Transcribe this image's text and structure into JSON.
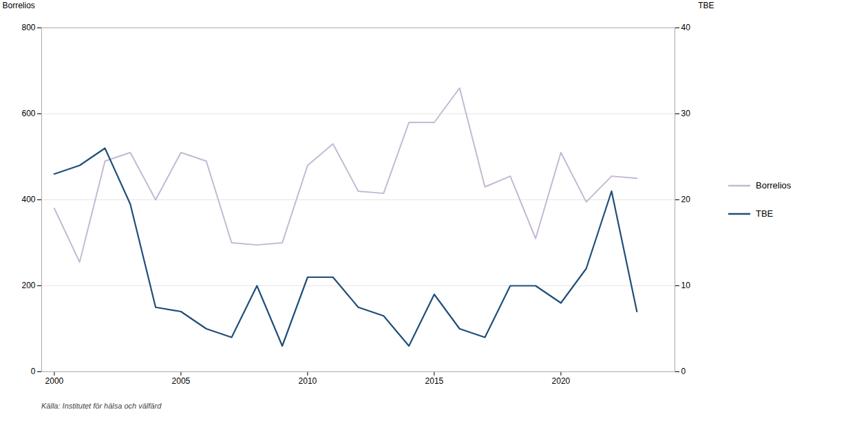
{
  "chart_data": {
    "type": "line",
    "ylabel": "Borrelios",
    "y2label": "TBE",
    "source": "Källa: Institutet för hälsa och välfärd",
    "x": [
      2000,
      2001,
      2002,
      2003,
      2004,
      2005,
      2006,
      2007,
      2008,
      2009,
      2010,
      2011,
      2012,
      2013,
      2014,
      2015,
      2016,
      2017,
      2018,
      2019,
      2020,
      2021,
      2022,
      2023
    ],
    "series": [
      {
        "name": "Borrelios",
        "color": "#c5b8d4",
        "values": [
          380,
          255,
          490,
          510,
          400,
          510,
          490,
          300,
          295,
          300,
          480,
          530,
          420,
          415,
          580,
          580,
          660,
          430,
          455,
          310,
          510,
          395,
          455,
          450
        ]
      },
      {
        "name": "TBE",
        "color": "#1f4e79",
        "axis": "y2",
        "values": [
          23,
          24,
          26,
          19.5,
          7.5,
          7.0,
          5.0,
          4.0,
          10,
          3.0,
          11,
          11,
          7.5,
          6.5,
          3.0,
          9,
          5.0,
          4.0,
          10,
          10,
          8.0,
          12,
          21,
          7.0
        ]
      }
    ],
    "xlim": [
      1999.5,
      2024.5
    ],
    "xticks": [
      2000,
      2005,
      2010,
      2015,
      2020
    ],
    "ylim": [
      0,
      800
    ],
    "yticks": [
      0,
      200,
      400,
      600,
      800
    ],
    "y2lim": [
      0,
      40
    ],
    "y2ticks": [
      0,
      10,
      20,
      30,
      40
    ],
    "grid": true,
    "legend": "right"
  }
}
